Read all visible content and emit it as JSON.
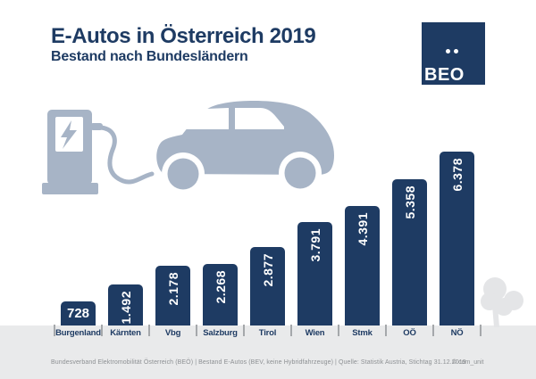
{
  "header": {
    "title": "E-Autos in Österreich 2019",
    "subtitle": "Bestand nach Bundesländern"
  },
  "logo": {
    "text": "BEO",
    "name": "BEÖ"
  },
  "icons": {
    "charging_station": "ev-charging-station-icon",
    "lightning_bolt": "lightning-bolt-icon",
    "car": "electric-car-icon",
    "tree": "tree-icon"
  },
  "chart_data": {
    "type": "bar",
    "title": "E-Autos in Österreich 2019",
    "subtitle": "Bestand nach Bundesländern",
    "categories": [
      "Burgenland",
      "Kärnten",
      "Vbg",
      "Salzburg",
      "Tirol",
      "Wien",
      "Stmk",
      "OÖ",
      "NÖ"
    ],
    "values": [
      728,
      1492,
      2178,
      2268,
      2877,
      3791,
      4391,
      5358,
      6378
    ],
    "value_labels": [
      "728",
      "1.492",
      "2.178",
      "2.268",
      "2.877",
      "3.791",
      "4.391",
      "5.358",
      "6.378"
    ],
    "xlabel": "",
    "ylabel": "",
    "ylim": [
      0,
      6500
    ],
    "grid": false,
    "legend": false,
    "orientation": "vertical",
    "bar_color": "#1e3b63",
    "value_label_color": "#ffffff"
  },
  "footer": {
    "source": "Bundesverband Elektromobilität Österreich (BEÖ) | Bestand E-Autos (BEV, keine Hybridfahrzeuge) | Quelle: Statistik Austria, Stichtag 31.12.2019",
    "credit": "© com_unit"
  },
  "colors": {
    "navy": "#1e3b63",
    "car_gray": "#a7b4c6",
    "ground": "#e9eaeb",
    "tree": "#e4e5e7",
    "tick": "#a5a8ab",
    "footer_text": "#8d9093"
  }
}
